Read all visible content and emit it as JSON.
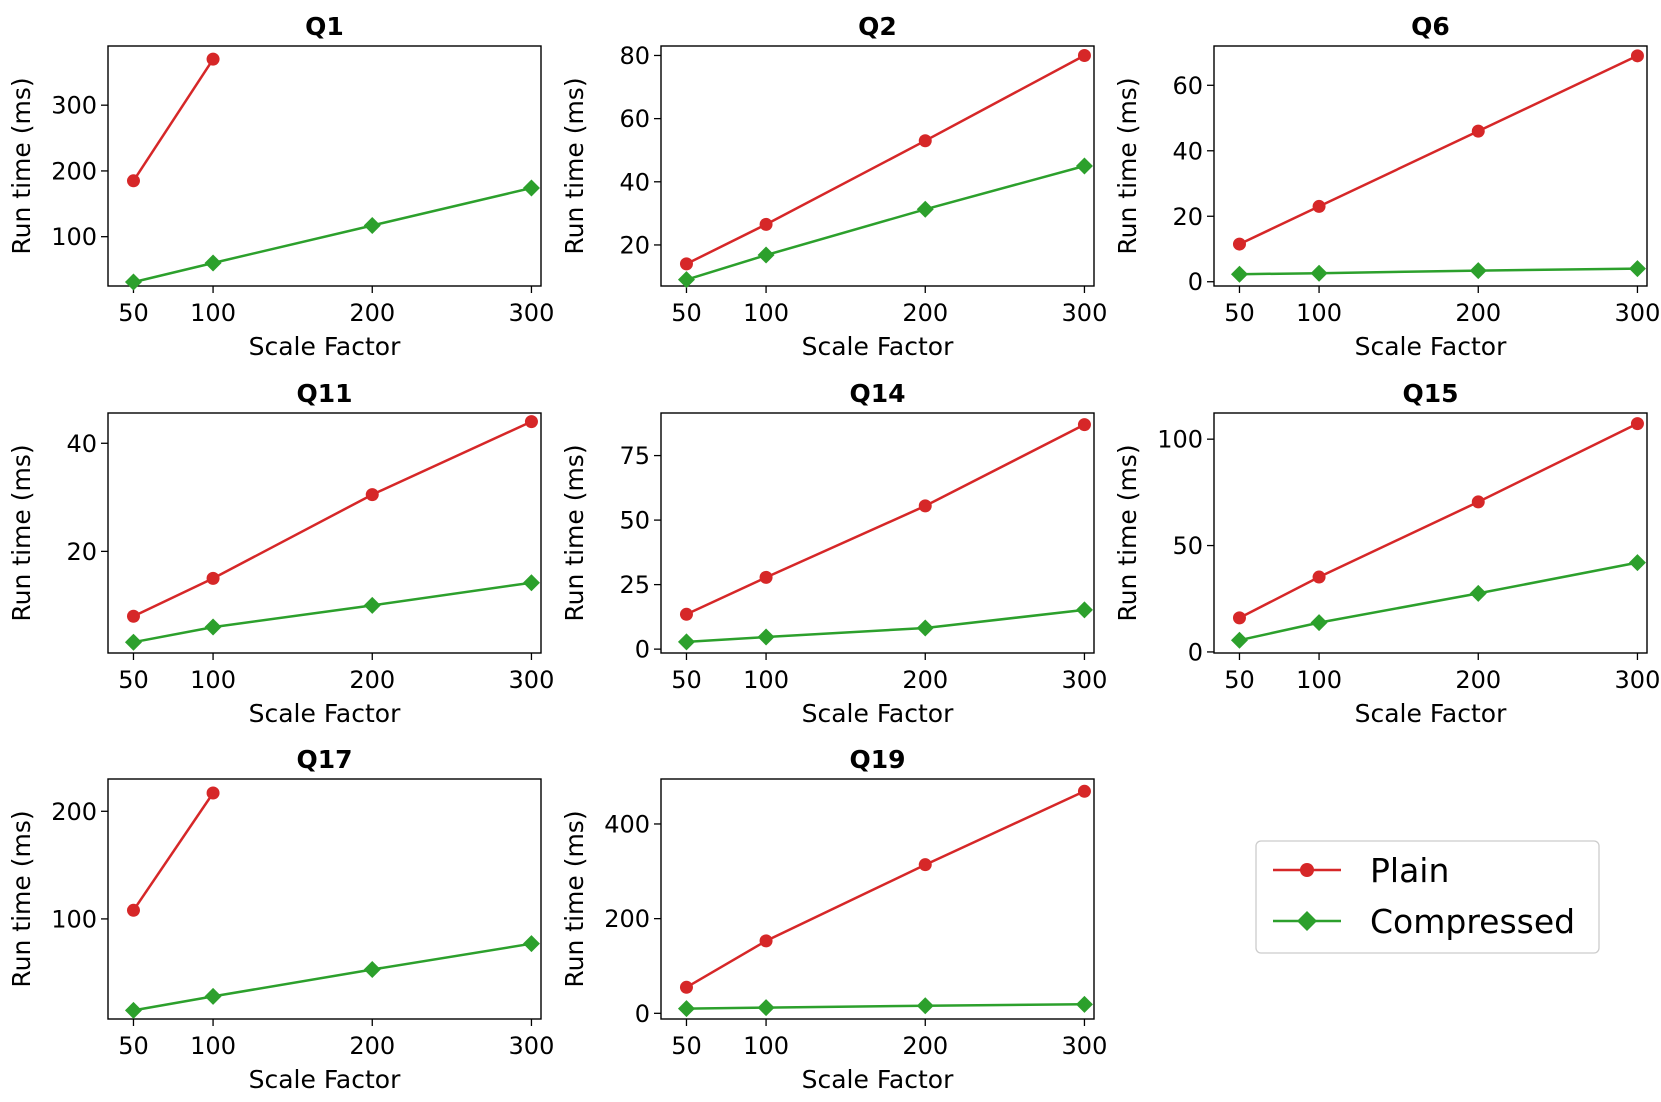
{
  "colors": {
    "plain": "#d62728",
    "compressed": "#2ca02c",
    "axis": "#000000",
    "background": "#ffffff"
  },
  "legend": {
    "location": "lower-right",
    "entries": [
      "Plain",
      "Compressed"
    ]
  },
  "chart_data": [
    {
      "type": "line",
      "title": "Q1",
      "xlabel": "Scale Factor",
      "ylabel": "Run time (ms)",
      "xlim": [
        34,
        306
      ],
      "ylim": [
        25,
        390
      ],
      "xticks": [
        50,
        100,
        200,
        300
      ],
      "yticks": [
        100,
        200,
        300
      ],
      "series": [
        {
          "name": "Plain",
          "marker": "circle",
          "x": [
            50,
            100
          ],
          "y": [
            185,
            370
          ]
        },
        {
          "name": "Compressed",
          "marker": "diamond",
          "x": [
            50,
            100,
            200,
            300
          ],
          "y": [
            31,
            60,
            117,
            174
          ]
        }
      ]
    },
    {
      "type": "line",
      "title": "Q2",
      "xlabel": "Scale Factor",
      "ylabel": "Run time (ms)",
      "xlim": [
        34,
        306
      ],
      "ylim": [
        7,
        83
      ],
      "xticks": [
        50,
        100,
        200,
        300
      ],
      "yticks": [
        20,
        40,
        60,
        80
      ],
      "series": [
        {
          "name": "Plain",
          "marker": "circle",
          "x": [
            50,
            100,
            200,
            300
          ],
          "y": [
            14,
            26.5,
            53,
            80
          ]
        },
        {
          "name": "Compressed",
          "marker": "diamond",
          "x": [
            50,
            100,
            200,
            300
          ],
          "y": [
            9,
            16.8,
            31.3,
            45
          ]
        }
      ]
    },
    {
      "type": "line",
      "title": "Q6",
      "xlabel": "Scale Factor",
      "ylabel": "Run time (ms)",
      "xlim": [
        34,
        306
      ],
      "ylim": [
        -1.3,
        72
      ],
      "xticks": [
        50,
        100,
        200,
        300
      ],
      "yticks": [
        0,
        20,
        40,
        60
      ],
      "series": [
        {
          "name": "Plain",
          "marker": "circle",
          "x": [
            50,
            100,
            200,
            300
          ],
          "y": [
            11.5,
            23,
            46,
            69
          ]
        },
        {
          "name": "Compressed",
          "marker": "diamond",
          "x": [
            50,
            100,
            200,
            300
          ],
          "y": [
            2.3,
            2.6,
            3.4,
            4
          ]
        }
      ]
    },
    {
      "type": "line",
      "title": "Q11",
      "xlabel": "Scale Factor",
      "ylabel": "Run time (ms)",
      "xlim": [
        34,
        306
      ],
      "ylim": [
        1.2,
        45.6
      ],
      "xticks": [
        50,
        100,
        200,
        300
      ],
      "yticks": [
        20,
        40
      ],
      "series": [
        {
          "name": "Plain",
          "marker": "circle",
          "x": [
            50,
            100,
            200,
            300
          ],
          "y": [
            8,
            15,
            30.5,
            44
          ]
        },
        {
          "name": "Compressed",
          "marker": "diamond",
          "x": [
            50,
            100,
            200,
            300
          ],
          "y": [
            3.2,
            6,
            10,
            14.2
          ]
        }
      ]
    },
    {
      "type": "line",
      "title": "Q14",
      "xlabel": "Scale Factor",
      "ylabel": "Run time (ms)",
      "xlim": [
        34,
        306
      ],
      "ylim": [
        -1.5,
        91.5
      ],
      "xticks": [
        50,
        100,
        200,
        300
      ],
      "yticks": [
        0,
        25,
        50,
        75
      ],
      "series": [
        {
          "name": "Plain",
          "marker": "circle",
          "x": [
            50,
            100,
            200,
            300
          ],
          "y": [
            13.5,
            27.8,
            55.5,
            87
          ]
        },
        {
          "name": "Compressed",
          "marker": "diamond",
          "x": [
            50,
            100,
            200,
            300
          ],
          "y": [
            2.8,
            4.7,
            8.2,
            15.2
          ]
        }
      ]
    },
    {
      "type": "line",
      "title": "Q15",
      "xlabel": "Scale Factor",
      "ylabel": "Run time (ms)",
      "xlim": [
        34,
        306
      ],
      "ylim": [
        -0.5,
        112.3
      ],
      "xticks": [
        50,
        100,
        200,
        300
      ],
      "yticks": [
        0,
        50,
        100
      ],
      "series": [
        {
          "name": "Plain",
          "marker": "circle",
          "x": [
            50,
            100,
            200,
            300
          ],
          "y": [
            16,
            35.2,
            70.5,
            107.3
          ]
        },
        {
          "name": "Compressed",
          "marker": "diamond",
          "x": [
            50,
            100,
            200,
            300
          ],
          "y": [
            5.5,
            13.8,
            27.5,
            42
          ]
        }
      ]
    },
    {
      "type": "line",
      "title": "Q17",
      "xlabel": "Scale Factor",
      "ylabel": "Run time (ms)",
      "xlim": [
        34,
        306
      ],
      "ylim": [
        7,
        230
      ],
      "xticks": [
        50,
        100,
        200,
        300
      ],
      "yticks": [
        100,
        200
      ],
      "series": [
        {
          "name": "Plain",
          "marker": "circle",
          "x": [
            50,
            100
          ],
          "y": [
            108,
            217
          ]
        },
        {
          "name": "Compressed",
          "marker": "diamond",
          "x": [
            50,
            100,
            200,
            300
          ],
          "y": [
            15,
            28,
            53,
            77
          ]
        }
      ]
    },
    {
      "type": "line",
      "title": "Q19",
      "xlabel": "Scale Factor",
      "ylabel": "Run time (ms)",
      "xlim": [
        34,
        306
      ],
      "ylim": [
        -12,
        495
      ],
      "xticks": [
        50,
        100,
        200,
        300
      ],
      "yticks": [
        0,
        200,
        400
      ],
      "series": [
        {
          "name": "Plain",
          "marker": "circle",
          "x": [
            50,
            100,
            200,
            300
          ],
          "y": [
            55,
            153,
            314,
            469
          ]
        },
        {
          "name": "Compressed",
          "marker": "diamond",
          "x": [
            50,
            100,
            200,
            300
          ],
          "y": [
            10,
            12,
            16,
            19
          ]
        }
      ]
    }
  ]
}
